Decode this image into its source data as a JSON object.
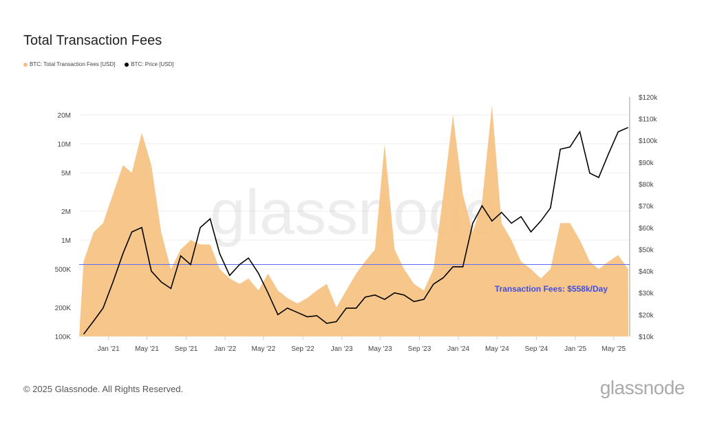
{
  "title": "Total Transaction Fees",
  "footer": "© 2025 Glassnode. All Rights Reserved.",
  "logo": "glassnode",
  "watermark": "glassnode",
  "colors": {
    "fees": "#f5c07e",
    "price": "#000000",
    "line": "#5b6cf0",
    "annotation": "#3f4ee0"
  },
  "chart_data": {
    "type": "area",
    "title": "Total Transaction Fees",
    "legend": [
      "BTC: Total Transaction Fees [USD]",
      "BTC: Price [USD]"
    ],
    "legend_placement": "top-left",
    "x_ticks": [
      "Jan '21",
      "May '21",
      "Sep '21",
      "Jan '22",
      "May '22",
      "Sep '22",
      "Jan '23",
      "May '23",
      "Sep '23",
      "Jan '24",
      "May '24",
      "Sep '24",
      "Jan '25",
      "May '25"
    ],
    "y_left": {
      "scale": "log",
      "ticks": [
        "100K",
        "200K",
        "500K",
        "1M",
        "2M",
        "5M",
        "10M",
        "20M"
      ],
      "tick_values": [
        100000,
        200000,
        500000,
        1000000,
        2000000,
        5000000,
        10000000,
        20000000
      ]
    },
    "y_right": {
      "scale": "linear",
      "ticks": [
        "$10k",
        "$20k",
        "$30k",
        "$40k",
        "$50k",
        "$60k",
        "$70k",
        "$80k",
        "$90k",
        "$100k",
        "$110k",
        "$120k"
      ],
      "range": [
        10000,
        120000
      ]
    },
    "x": [
      "2020-10",
      "2020-11",
      "2020-12",
      "2021-01",
      "2021-02",
      "2021-03",
      "2021-04",
      "2021-05",
      "2021-06",
      "2021-07",
      "2021-08",
      "2021-09",
      "2021-10",
      "2021-11",
      "2021-12",
      "2022-01",
      "2022-02",
      "2022-03",
      "2022-04",
      "2022-05",
      "2022-06",
      "2022-07",
      "2022-08",
      "2022-09",
      "2022-10",
      "2022-11",
      "2022-12",
      "2023-01",
      "2023-02",
      "2023-03",
      "2023-04",
      "2023-05",
      "2023-06",
      "2023-07",
      "2023-08",
      "2023-09",
      "2023-10",
      "2023-11",
      "2023-12",
      "2024-01",
      "2024-02",
      "2024-03",
      "2024-04",
      "2024-05",
      "2024-06",
      "2024-07",
      "2024-08",
      "2024-09",
      "2024-10",
      "2024-11",
      "2024-12",
      "2025-01",
      "2025-02",
      "2025-03",
      "2025-04",
      "2025-05",
      "2025-06"
    ],
    "series": [
      {
        "name": "BTC: Total Transaction Fees [USD]",
        "axis": "left",
        "values": [
          600000,
          1200000,
          1500000,
          3000000,
          6000000,
          5000000,
          13000000,
          6000000,
          1200000,
          500000,
          800000,
          1000000,
          900000,
          900000,
          500000,
          400000,
          350000,
          400000,
          300000,
          450000,
          300000,
          250000,
          220000,
          250000,
          300000,
          350000,
          200000,
          300000,
          450000,
          600000,
          800000,
          10000000,
          800000,
          500000,
          350000,
          300000,
          500000,
          3000000,
          20000000,
          3000000,
          1200000,
          2500000,
          25000000,
          1500000,
          1000000,
          600000,
          500000,
          400000,
          500000,
          1500000,
          1500000,
          1000000,
          600000,
          500000,
          600000,
          700000,
          500000
        ]
      },
      {
        "name": "BTC: Price [USD]",
        "axis": "right",
        "values": [
          11000,
          17000,
          23000,
          35000,
          48000,
          58000,
          60000,
          40000,
          35000,
          32000,
          47000,
          43000,
          60000,
          64000,
          48000,
          38000,
          43000,
          46000,
          39000,
          30000,
          20000,
          23000,
          21000,
          19000,
          19500,
          16000,
          16800,
          23000,
          23000,
          28000,
          29000,
          27000,
          30000,
          29000,
          26000,
          27000,
          34000,
          37000,
          42000,
          42000,
          62000,
          70000,
          63000,
          67000,
          62000,
          65000,
          58000,
          63000,
          69000,
          96000,
          97000,
          104000,
          85000,
          83000,
          94000,
          104000,
          106000
        ]
      }
    ],
    "reference_line": {
      "value": 558000,
      "axis": "left",
      "label": "Transaction Fees: $558k/Day"
    }
  }
}
